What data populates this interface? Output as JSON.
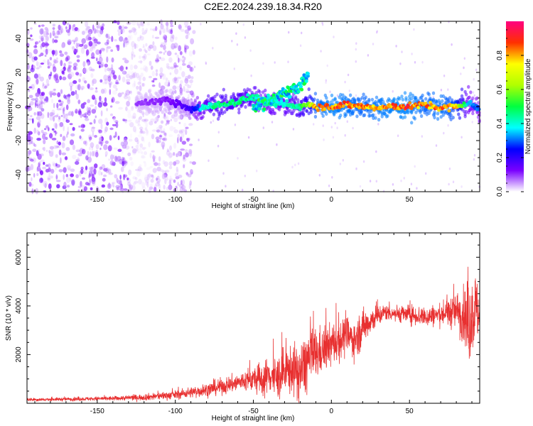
{
  "figure": {
    "title": "C2E2.2024.239.18.34.R20"
  },
  "chart_data": [
    {
      "type": "heatmap",
      "xlabel": "Height of straight line (km)",
      "ylabel": "Frequency (Hz)",
      "xlim": [
        -195,
        95
      ],
      "ylim": [
        -50,
        50
      ],
      "xticks": [
        -150,
        -100,
        -50,
        0,
        50
      ],
      "yticks": [
        -40,
        -20,
        0,
        20,
        40
      ],
      "grid": false,
      "colorbar": {
        "label": "Normalized spectral amplitude",
        "range": [
          0,
          1
        ],
        "ticks": [
          "0.0",
          "0.2",
          "0.4",
          "0.6",
          "0.8"
        ],
        "colors": [
          "#ffffff",
          "#7a00ff",
          "#0000ff",
          "#00ffff",
          "#00ff40",
          "#b0ff00",
          "#ffff00",
          "#ff3000",
          "#ff0080"
        ]
      },
      "ridge": {
        "x": [
          -120,
          -105,
          -90,
          -80,
          -70,
          -60,
          -50,
          -40,
          -30,
          -20,
          -15,
          -10,
          0,
          10,
          20,
          30,
          40,
          50,
          60,
          70,
          80,
          88,
          95
        ],
        "y": [
          2,
          4,
          -2,
          0,
          1,
          3,
          6,
          2,
          1,
          0,
          2,
          0,
          0,
          1,
          0,
          -1,
          0,
          0,
          1,
          -1,
          0,
          2,
          -2
        ],
        "amplitude": [
          0.1,
          0.12,
          0.2,
          0.45,
          0.5,
          0.48,
          0.45,
          0.4,
          0.42,
          0.5,
          0.6,
          0.85,
          0.9,
          0.88,
          0.85,
          0.88,
          0.9,
          0.9,
          0.85,
          0.88,
          0.8,
          0.35,
          0.3
        ]
      },
      "branch": {
        "x": [
          -50,
          -40,
          -30,
          -20,
          -15
        ],
        "y": [
          0,
          3,
          7,
          12,
          18
        ]
      },
      "noise_region": {
        "x": [
          -195,
          -88
        ],
        "amplitude": 0.1
      }
    },
    {
      "type": "line",
      "xlabel": "Height of straight line (km)",
      "ylabel": "SNR (10 * v/v)",
      "xlim": [
        -195,
        95
      ],
      "ylim": [
        0,
        7000
      ],
      "xticks": [
        -150,
        -100,
        -50,
        0,
        50
      ],
      "yticks": [
        2000,
        4000,
        6000
      ],
      "grid": false,
      "series": [
        {
          "color": "#e83030",
          "x": [
            -195,
            -180,
            -160,
            -140,
            -120,
            -110,
            -100,
            -90,
            -80,
            -70,
            -60,
            -50,
            -45,
            -40,
            -35,
            -30,
            -25,
            -20,
            -15,
            -10,
            -5,
            0,
            5,
            10,
            15,
            20,
            25,
            30,
            35,
            40,
            50,
            60,
            70,
            80,
            85,
            88,
            92,
            95
          ],
          "y": [
            150,
            160,
            180,
            200,
            250,
            300,
            350,
            450,
            550,
            700,
            850,
            1000,
            900,
            1200,
            1000,
            1300,
            1400,
            1200,
            1800,
            2000,
            2200,
            2400,
            2600,
            2800,
            2600,
            3100,
            3400,
            3600,
            3750,
            3700,
            3650,
            3550,
            3650,
            3800,
            3600,
            3300,
            3900,
            3600
          ],
          "spread": [
            60,
            60,
            70,
            80,
            120,
            150,
            160,
            200,
            250,
            300,
            350,
            450,
            600,
            700,
            800,
            900,
            900,
            1100,
            1200,
            1000,
            800,
            800,
            800,
            700,
            700,
            700,
            500,
            400,
            300,
            300,
            350,
            400,
            400,
            700,
            1000,
            1600,
            1400,
            900
          ]
        }
      ]
    }
  ]
}
